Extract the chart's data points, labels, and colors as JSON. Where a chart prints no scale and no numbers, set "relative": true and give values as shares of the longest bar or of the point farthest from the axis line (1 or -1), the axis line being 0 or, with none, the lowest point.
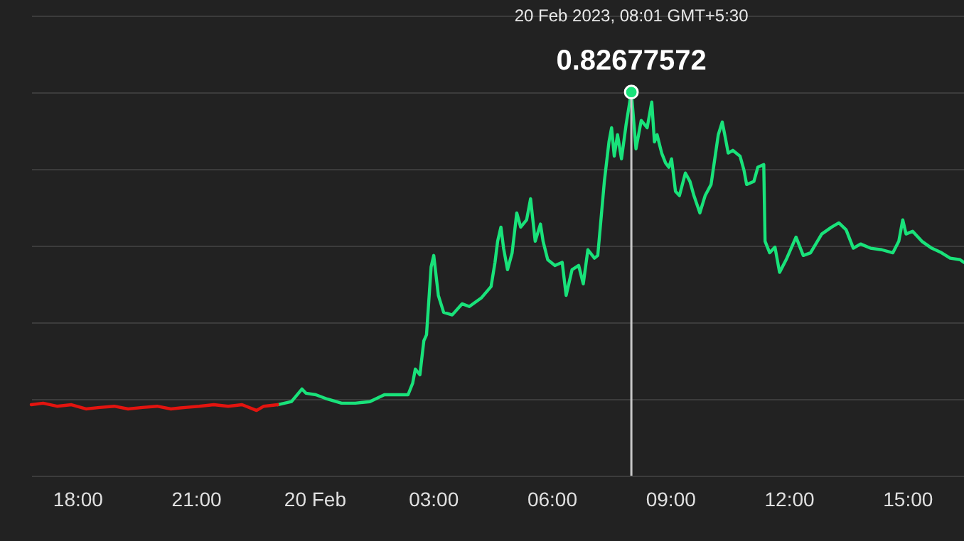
{
  "chart_data": {
    "type": "line",
    "relative": true,
    "grid": "y",
    "marker": "none",
    "line_style": "solid",
    "xlim": [
      "2023-02-19T16:50",
      "2023-02-20T16:26"
    ],
    "xticks": [
      {
        "value": "2023-02-19T18:00",
        "label": "18:00"
      },
      {
        "value": "2023-02-19T21:00",
        "label": "21:00"
      },
      {
        "value": "2023-02-20T00:00",
        "label": "20 Feb"
      },
      {
        "value": "2023-02-20T03:00",
        "label": "03:00"
      },
      {
        "value": "2023-02-20T06:00",
        "label": "06:00"
      },
      {
        "value": "2023-02-20T09:00",
        "label": "09:00"
      },
      {
        "value": "2023-02-20T12:00",
        "label": "12:00"
      },
      {
        "value": "2023-02-20T15:00",
        "label": "15:00"
      }
    ],
    "x": [
      "2023-02-19T23:04",
      "2023-02-19T23:25",
      "2023-02-19T23:41",
      "2023-02-19T23:47",
      "2023-02-20T00:02",
      "2023-02-20T00:19",
      "2023-02-20T00:41",
      "2023-02-20T01:02",
      "2023-02-20T01:24",
      "2023-02-20T01:46",
      "2023-02-20T02:07",
      "2023-02-20T02:22",
      "2023-02-20T02:29",
      "2023-02-20T02:33",
      "2023-02-20T02:40",
      "2023-02-20T02:46",
      "2023-02-20T02:50",
      "2023-02-20T02:57",
      "2023-02-20T03:01",
      "2023-02-20T03:08",
      "2023-02-20T03:16",
      "2023-02-20T03:29",
      "2023-02-20T03:44",
      "2023-02-20T03:55",
      "2023-02-20T04:13",
      "2023-02-20T04:28",
      "2023-02-20T04:34",
      "2023-02-20T04:38",
      "2023-02-20T04:43",
      "2023-02-20T04:47",
      "2023-02-20T04:53",
      "2023-02-20T05:00",
      "2023-02-20T05:07",
      "2023-02-20T05:13",
      "2023-02-20T05:22",
      "2023-02-20T05:28",
      "2023-02-20T05:35",
      "2023-02-20T05:43",
      "2023-02-20T05:47",
      "2023-02-20T05:54",
      "2023-02-20T06:05",
      "2023-02-20T06:16",
      "2023-02-20T06:22",
      "2023-02-20T06:31",
      "2023-02-20T06:41",
      "2023-02-20T06:48",
      "2023-02-20T06:55",
      "2023-02-20T07:05",
      "2023-02-20T07:10",
      "2023-02-20T07:20",
      "2023-02-20T07:27",
      "2023-02-20T07:31",
      "2023-02-20T07:35",
      "2023-02-20T07:40",
      "2023-02-20T07:46",
      "2023-02-20T07:53",
      "2023-02-20T08:01",
      "2023-02-20T08:08",
      "2023-02-20T08:16",
      "2023-02-20T08:25",
      "2023-02-20T08:32",
      "2023-02-20T08:36",
      "2023-02-20T08:40",
      "2023-02-20T08:47",
      "2023-02-20T08:53",
      "2023-02-20T08:58",
      "2023-02-20T09:02",
      "2023-02-20T09:08",
      "2023-02-20T09:14",
      "2023-02-20T09:23",
      "2023-02-20T09:30",
      "2023-02-20T09:36",
      "2023-02-20T09:45",
      "2023-02-20T09:53",
      "2023-02-20T10:02",
      "2023-02-20T10:13",
      "2023-02-20T10:19",
      "2023-02-20T10:24",
      "2023-02-20T10:28",
      "2023-02-20T10:35",
      "2023-02-20T10:46",
      "2023-02-20T10:52",
      "2023-02-20T10:56",
      "2023-02-20T11:07",
      "2023-02-20T11:13",
      "2023-02-20T11:22",
      "2023-02-20T11:24",
      "2023-02-20T11:31",
      "2023-02-20T11:39",
      "2023-02-20T11:46",
      "2023-02-20T11:56",
      "2023-02-20T12:11",
      "2023-02-20T12:22",
      "2023-02-20T12:33",
      "2023-02-20T12:50",
      "2023-02-20T13:05",
      "2023-02-20T13:16",
      "2023-02-20T13:27",
      "2023-02-20T13:38",
      "2023-02-20T13:49",
      "2023-02-20T14:04",
      "2023-02-20T14:21",
      "2023-02-20T14:38",
      "2023-02-20T14:47",
      "2023-02-20T14:53",
      "2023-02-20T14:58",
      "2023-02-20T15:08",
      "2023-02-20T15:22",
      "2023-02-20T15:37",
      "2023-02-20T15:52",
      "2023-02-20T16:05",
      "2023-02-20T16:20",
      "2023-02-20T16:26"
    ],
    "series": [
      {
        "color": "#19e27a",
        "values": [
          0.185,
          0.193,
          0.226,
          0.215,
          0.211,
          0.2,
          0.189,
          0.189,
          0.193,
          0.211,
          0.211,
          0.211,
          0.241,
          0.278,
          0.263,
          0.352,
          0.367,
          0.544,
          0.574,
          0.47,
          0.426,
          0.419,
          0.448,
          0.441,
          0.463,
          0.493,
          0.556,
          0.611,
          0.648,
          0.593,
          0.537,
          0.581,
          0.685,
          0.648,
          0.667,
          0.722,
          0.611,
          0.656,
          0.611,
          0.563,
          0.548,
          0.556,
          0.47,
          0.537,
          0.548,
          0.5,
          0.589,
          0.567,
          0.574,
          0.767,
          0.87,
          0.907,
          0.833,
          0.889,
          0.826,
          0.915,
          1,
          0.852,
          0.926,
          0.907,
          0.974,
          0.87,
          0.889,
          0.841,
          0.815,
          0.804,
          0.826,
          0.741,
          0.73,
          0.789,
          0.767,
          0.73,
          0.685,
          0.73,
          0.759,
          0.889,
          0.922,
          0.878,
          0.841,
          0.848,
          0.833,
          0.796,
          0.759,
          0.767,
          0.804,
          0.811,
          0.611,
          0.581,
          0.596,
          0.53,
          0.563,
          0.622,
          0.574,
          0.581,
          0.63,
          0.648,
          0.659,
          0.641,
          0.593,
          0.604,
          0.593,
          0.589,
          0.581,
          0.611,
          0.667,
          0.63,
          0.637,
          0.611,
          0.593,
          0.581,
          0.567,
          0.563,
          0.556
        ]
      },
      {
        "color": "#e3140f",
        "x": [
          "2023-02-19T16:50",
          "2023-02-19T17:08",
          "2023-02-19T17:29",
          "2023-02-19T17:51",
          "2023-02-19T18:13",
          "2023-02-19T18:34",
          "2023-02-19T18:56",
          "2023-02-19T19:17",
          "2023-02-19T19:39",
          "2023-02-19T20:01",
          "2023-02-19T20:22",
          "2023-02-19T20:44",
          "2023-02-19T21:05",
          "2023-02-19T21:27",
          "2023-02-19T21:49",
          "2023-02-19T22:10",
          "2023-02-19T22:32",
          "2023-02-19T22:43",
          "2023-02-19T23:04"
        ],
        "values": [
          0.185,
          0.189,
          0.181,
          0.185,
          0.174,
          0.178,
          0.181,
          0.174,
          0.178,
          0.181,
          0.174,
          0.178,
          0.181,
          0.185,
          0.181,
          0.185,
          0.17,
          0.181,
          0.185
        ]
      }
    ],
    "ref_lines": [
      {
        "axis": "x",
        "value": "2023-02-20T08:01",
        "color": "#c8c8c8"
      }
    ],
    "annotations": [
      "20 Feb 2023, 08:01 GMT+5:30",
      {
        "text": "0.82677572",
        "x": "2023-02-20T08:01",
        "y": 1
      }
    ]
  }
}
